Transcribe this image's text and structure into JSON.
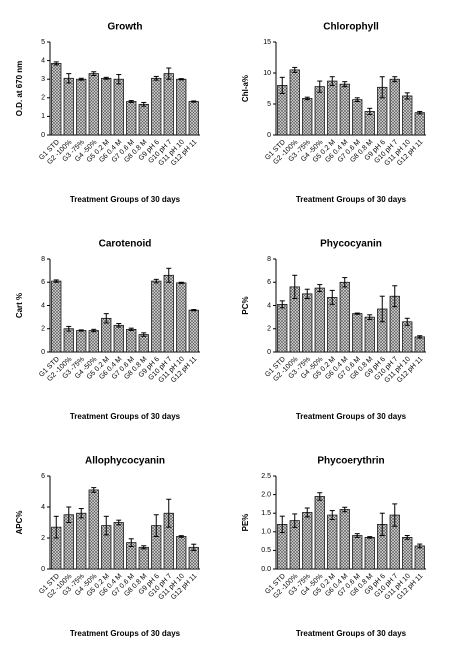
{
  "chart_data": [
    {
      "type": "bar",
      "title": "Growth",
      "ylabel": "O.D. at 670 nm",
      "xlabel": "Treatment Groups of 30 days",
      "categories": [
        "G1 STD",
        "G2 -100%",
        "G3 -75%",
        "G4 -50%",
        "G5 0.2 M",
        "G6 0.4 M",
        "G7 0.6 M",
        "G8 0.8 M",
        "G9 pH 6",
        "G10 pH 7",
        "G11 pH 10",
        "G12 pH 11"
      ],
      "values": [
        3.85,
        3.05,
        3.0,
        3.3,
        3.05,
        3.0,
        1.8,
        1.65,
        3.05,
        3.3,
        3.0,
        1.8
      ],
      "errors": [
        0.08,
        0.25,
        0.05,
        0.1,
        0.05,
        0.25,
        0.05,
        0.1,
        0.1,
        0.3,
        0.03,
        0.03
      ],
      "ylim": [
        0,
        5
      ],
      "yticks": [
        0,
        1,
        2,
        3,
        4,
        5
      ]
    },
    {
      "type": "bar",
      "title": "Chlorophyll",
      "ylabel": "Chl-a%",
      "xlabel": "Treatment Groups of 30 days",
      "categories": [
        "G1 STD",
        "G2 -100%",
        "G3 -75%",
        "G4 -50%",
        "G5 0.2 M",
        "G6 0.4 M",
        "G7 0.6 M",
        "G8 0.8 M",
        "G9 pH 6",
        "G10 pH 7",
        "G11 pH 10",
        "G12 pH 11"
      ],
      "values": [
        8.0,
        10.5,
        5.9,
        7.8,
        8.7,
        8.2,
        5.7,
        3.8,
        7.7,
        9.0,
        6.3,
        3.6
      ],
      "errors": [
        1.3,
        0.4,
        0.2,
        0.9,
        0.7,
        0.4,
        0.3,
        0.5,
        1.7,
        0.4,
        0.5,
        0.2
      ],
      "ylim": [
        0,
        15
      ],
      "yticks": [
        0,
        5,
        10,
        15
      ]
    },
    {
      "type": "bar",
      "title": "Carotenoid",
      "ylabel": "Cart %",
      "xlabel": "Treatment Groups of 30 days",
      "categories": [
        "G1 STD",
        "G2 -100%",
        "G3 -75%",
        "G4 -50%",
        "G5 0.2 M",
        "G6 0.4 M",
        "G7 0.6 M",
        "G8 0.8 M",
        "G9 pH 6",
        "G10 pH 7",
        "G11 pH 10",
        "G12 pH 11"
      ],
      "values": [
        6.1,
        2.0,
        1.85,
        1.85,
        2.9,
        2.3,
        1.95,
        1.5,
        6.1,
        6.6,
        5.95,
        3.6
      ],
      "errors": [
        0.1,
        0.2,
        0.05,
        0.1,
        0.4,
        0.15,
        0.1,
        0.15,
        0.15,
        0.6,
        0.05,
        0.05
      ],
      "ylim": [
        0,
        8
      ],
      "yticks": [
        0,
        2,
        4,
        6,
        8
      ]
    },
    {
      "type": "bar",
      "title": "Phycocyanin",
      "ylabel": "PC%",
      "xlabel": "Treatment Groups of 30 days",
      "categories": [
        "G1 STD",
        "G2 -100%",
        "G3 -75%",
        "G4 -50%",
        "G5 0.2 M",
        "G6 0.4 M",
        "G7 0.6 M",
        "G8 0.8 M",
        "G9 pH 6",
        "G10 pH 7",
        "G11 pH 10",
        "G12 pH 11"
      ],
      "values": [
        4.1,
        5.6,
        5.0,
        5.5,
        4.7,
        6.0,
        3.3,
        3.0,
        3.7,
        4.8,
        2.6,
        1.3
      ],
      "errors": [
        0.3,
        1.0,
        0.4,
        0.3,
        0.6,
        0.4,
        0.05,
        0.2,
        1.1,
        0.9,
        0.3,
        0.1
      ],
      "ylim": [
        0,
        8
      ],
      "yticks": [
        0,
        2,
        4,
        6,
        8
      ]
    },
    {
      "type": "bar",
      "title": "Allophycocyanin",
      "ylabel": "APC%",
      "xlabel": "Treatment Groups of 30 days",
      "categories": [
        "G1 STD",
        "G2 -100%",
        "G3 -75%",
        "G4 -50%",
        "G5 0.2 M",
        "G6 0.4 M",
        "G7 0.6 M",
        "G8 0.8 M",
        "G9 pH 6",
        "G10 pH 7",
        "G11 pH 10",
        "G12 pH 11"
      ],
      "values": [
        2.7,
        3.5,
        3.6,
        5.1,
        2.8,
        3.0,
        1.7,
        1.4,
        2.8,
        3.6,
        2.1,
        1.4
      ],
      "errors": [
        0.7,
        0.5,
        0.3,
        0.15,
        0.6,
        0.15,
        0.25,
        0.1,
        0.7,
        0.9,
        0.05,
        0.2
      ],
      "ylim": [
        0,
        6
      ],
      "yticks": [
        0,
        2,
        4,
        6
      ]
    },
    {
      "type": "bar",
      "title": "Phycoerythrin",
      "ylabel": "PE%",
      "xlabel": "Treatment Groups of 30 days",
      "categories": [
        "G1 STD",
        "G2 -100%",
        "G3 -75%",
        "G4 -50%",
        "G5 0.2 M",
        "G6 0.4 M",
        "G7 0.6 M",
        "G8 0.8 M",
        "G9 pH 6",
        "G10 pH 7",
        "G11 pH 10",
        "G12 pH 11"
      ],
      "values": [
        1.2,
        1.3,
        1.52,
        1.95,
        1.45,
        1.6,
        0.9,
        0.85,
        1.2,
        1.45,
        0.85,
        0.62
      ],
      "errors": [
        0.22,
        0.18,
        0.12,
        0.1,
        0.12,
        0.06,
        0.05,
        0.02,
        0.3,
        0.3,
        0.05,
        0.05
      ],
      "ylim": [
        0,
        2.5
      ],
      "yticks": [
        {
          "value": 0,
          "label": "0.0"
        },
        0.5,
        {
          "value": 1,
          "label": "1.0"
        },
        1.5,
        {
          "value": 2,
          "label": "2.0"
        },
        2.5
      ]
    }
  ]
}
